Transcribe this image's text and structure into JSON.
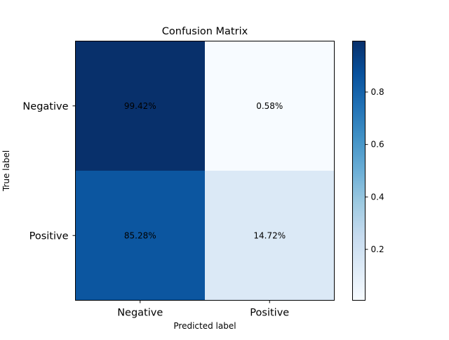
{
  "chart_data": {
    "type": "heatmap",
    "title": "Confusion Matrix",
    "xlabel": "Predicted label",
    "ylabel": "True label",
    "x_categories": [
      "Negative",
      "Positive"
    ],
    "y_categories": [
      "Negative",
      "Positive"
    ],
    "values": [
      [
        0.9942,
        0.0058
      ],
      [
        0.8528,
        0.1472
      ]
    ],
    "cell_labels": [
      [
        "99.42%",
        "0.58%"
      ],
      [
        "85.28%",
        "14.72%"
      ]
    ],
    "colormap": "Blues",
    "colorbar": {
      "range": [
        0.0058,
        0.9942
      ],
      "ticks": [
        0.2,
        0.4,
        0.6,
        0.8
      ],
      "tick_labels": [
        "0.2",
        "0.4",
        "0.6",
        "0.8"
      ]
    },
    "grid": false
  }
}
